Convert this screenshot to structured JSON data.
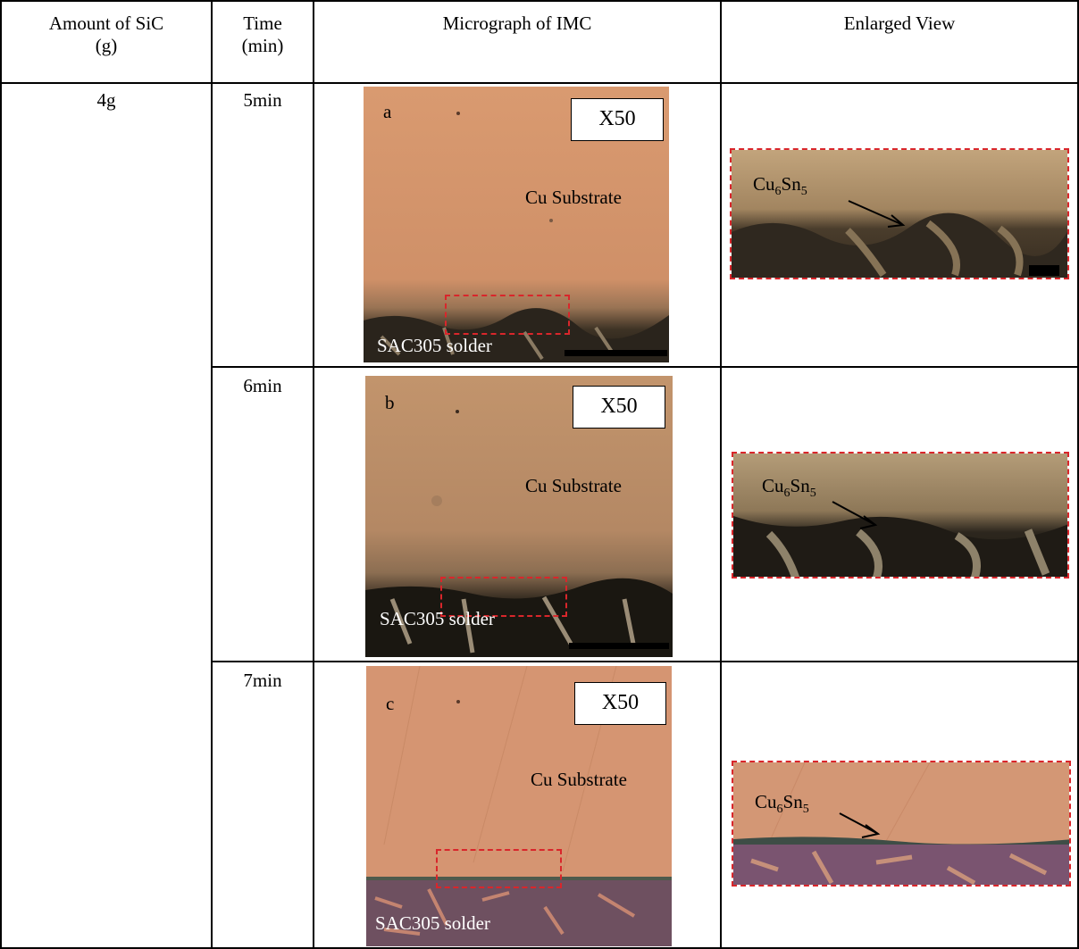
{
  "table": {
    "headers": {
      "amount": [
        "Amount of SiC",
        "(g)"
      ],
      "time": [
        "Time",
        "(min)"
      ],
      "micrograph": "Micrograph of IMC",
      "enlarged": "Enlarged View"
    },
    "amount_value": "4g",
    "rows": [
      {
        "time": "5min",
        "panel": "a",
        "magnification": "X50",
        "substrate_label": "Cu Substrate",
        "solder_label": "SAC305 solder",
        "phase": {
          "base": "Cu",
          "sub1": "6",
          "mid": "Sn",
          "sub2": "5"
        }
      },
      {
        "time": "6min",
        "panel": "b",
        "magnification": "X50",
        "substrate_label": "Cu Substrate",
        "solder_label": "SAC305 solder",
        "phase": {
          "base": "Cu",
          "sub1": "6",
          "mid": "Sn",
          "sub2": "5"
        }
      },
      {
        "time": "7min",
        "panel": "c",
        "magnification": "X50",
        "substrate_label": "Cu Substrate",
        "solder_label": "SAC305 solder",
        "phase": {
          "base": "Cu",
          "sub1": "6",
          "mid": "Sn",
          "sub2": "5"
        }
      }
    ]
  }
}
